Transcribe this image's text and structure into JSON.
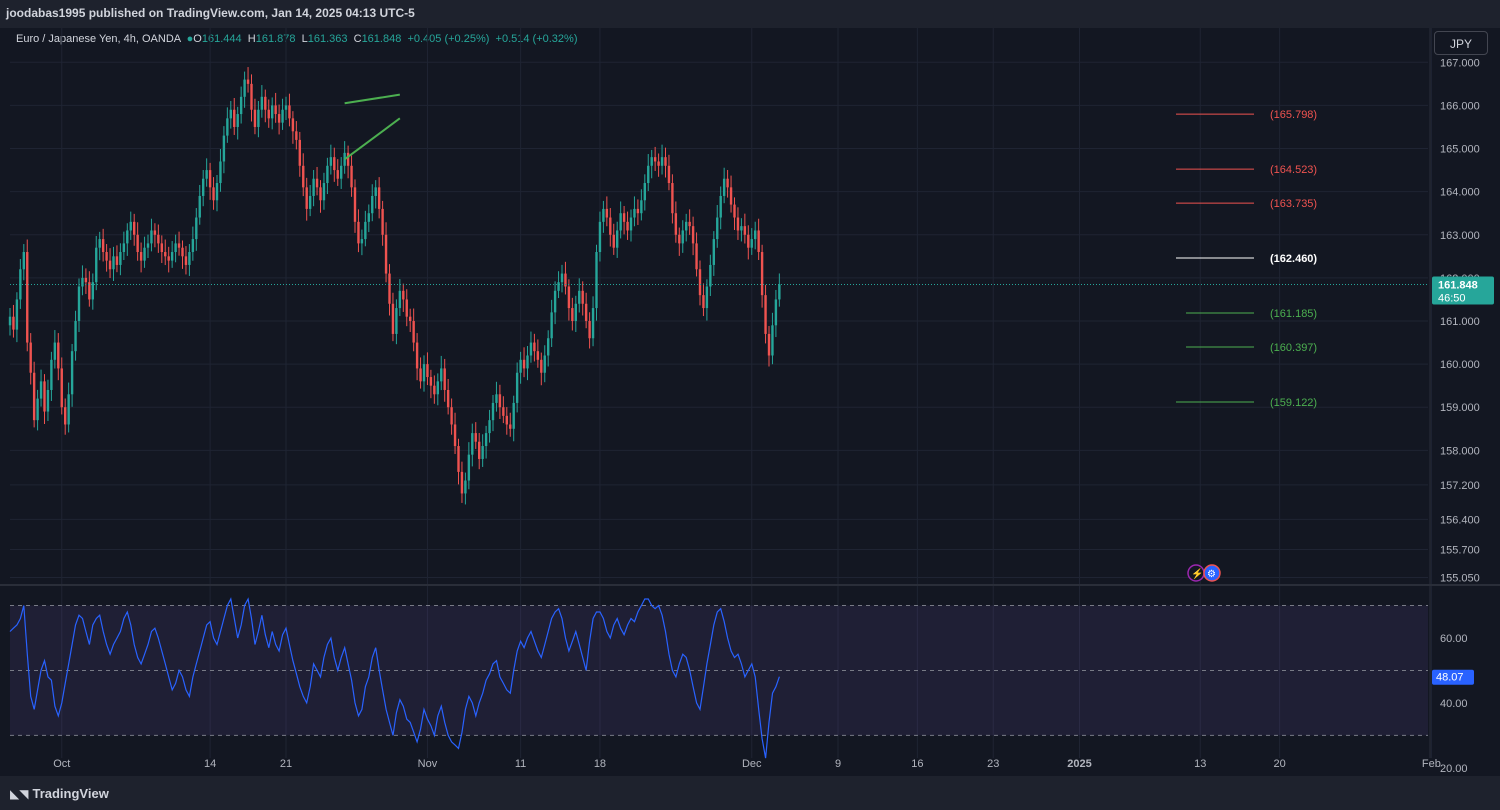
{
  "header": {
    "published": "joodabas1995 published on TradingView.com, Jan 14, 2025 04:13 UTC-5"
  },
  "legend": {
    "symbol": "Euro / Japanese Yen, 4h, OANDA",
    "o_label": "O",
    "o": "161.444",
    "h_label": "H",
    "h": "161.878",
    "l_label": "L",
    "l": "161.363",
    "c_label": "C",
    "c": "161.848",
    "change": "+0.405 (+0.25%)",
    "change2": "+0.514 (+0.32%)"
  },
  "currency_button": "JPY",
  "footer": {
    "brand": "TradingView",
    "logo_icon": "tradingview-logo-icon"
  },
  "colors": {
    "bg": "#131722",
    "up": "#26a69a",
    "down": "#ef5350",
    "rsi": "#2962ff",
    "red_level": "#ef5350",
    "green_level": "#4caf50",
    "white_level": "#ffffff"
  },
  "chart_data": [
    {
      "type": "candlestick",
      "title": "",
      "symbol": "EURJPY",
      "interval": "4h",
      "ylim": [
        154.9,
        167.1
      ],
      "y_ticks": [
        "167.000",
        "166.000",
        "165.000",
        "164.000",
        "163.000",
        "162.000",
        "161.000",
        "160.000",
        "159.000",
        "158.000",
        "157.200",
        "156.400",
        "155.700",
        "155.050"
      ],
      "x_ticks": [
        {
          "label": "Oct",
          "idx": 15
        },
        {
          "label": "14",
          "idx": 58
        },
        {
          "label": "21",
          "idx": 80
        },
        {
          "label": "Nov",
          "idx": 121
        },
        {
          "label": "11",
          "idx": 148
        },
        {
          "label": "18",
          "idx": 171
        },
        {
          "label": "Dec",
          "idx": 215
        },
        {
          "label": "9",
          "idx": 240
        },
        {
          "label": "16",
          "idx": 263
        },
        {
          "label": "23",
          "idx": 285
        },
        {
          "label": "2025",
          "idx": 310
        },
        {
          "label": "13",
          "idx": 345
        },
        {
          "label": "20",
          "idx": 368
        },
        {
          "label": "Feb",
          "idx": 412
        }
      ],
      "last_price": "161.848",
      "last_price_value": 161.848,
      "countdown": "46:50",
      "closes": [
        161.1,
        160.8,
        161.5,
        162.2,
        162.6,
        160.5,
        159.8,
        158.7,
        159.2,
        159.6,
        158.9,
        159.4,
        160.1,
        160.5,
        159.9,
        159.0,
        158.6,
        159.3,
        160.3,
        161.0,
        161.8,
        162.0,
        161.9,
        161.5,
        161.9,
        162.7,
        162.9,
        162.6,
        162.4,
        162.2,
        162.5,
        162.3,
        162.6,
        162.8,
        163.1,
        163.3,
        163.0,
        162.6,
        162.4,
        162.7,
        162.8,
        163.1,
        163.0,
        162.8,
        162.6,
        162.5,
        162.4,
        162.6,
        162.8,
        162.7,
        162.5,
        162.3,
        162.6,
        162.9,
        163.4,
        163.9,
        164.3,
        164.5,
        164.1,
        163.8,
        164.2,
        164.7,
        165.3,
        165.7,
        165.9,
        165.5,
        165.8,
        166.2,
        166.6,
        166.5,
        165.9,
        165.5,
        165.9,
        166.2,
        165.9,
        165.7,
        166.0,
        165.8,
        165.6,
        165.9,
        166.0,
        165.7,
        165.4,
        165.2,
        164.6,
        164.1,
        163.6,
        163.9,
        164.3,
        164.1,
        163.8,
        164.2,
        164.6,
        164.8,
        164.5,
        164.3,
        164.6,
        164.9,
        164.6,
        164.1,
        163.3,
        162.8,
        162.9,
        163.3,
        163.5,
        163.9,
        164.1,
        163.6,
        163.0,
        162.1,
        161.4,
        160.7,
        161.3,
        161.7,
        161.5,
        161.1,
        161.0,
        160.5,
        159.9,
        159.6,
        160.0,
        159.7,
        159.5,
        159.3,
        159.6,
        159.9,
        159.4,
        159.0,
        158.6,
        158.1,
        157.5,
        157.0,
        157.3,
        157.9,
        158.4,
        158.2,
        157.8,
        158.1,
        158.4,
        158.7,
        159.1,
        159.3,
        159.0,
        158.8,
        158.6,
        158.5,
        159.1,
        159.8,
        160.1,
        159.9,
        160.2,
        160.5,
        160.3,
        160.1,
        159.8,
        160.2,
        160.6,
        161.2,
        161.7,
        161.9,
        162.1,
        161.8,
        161.3,
        161.0,
        161.4,
        161.7,
        161.4,
        161.0,
        160.6,
        161.3,
        162.6,
        163.3,
        163.6,
        163.4,
        163.0,
        162.7,
        163.1,
        163.5,
        163.3,
        163.1,
        163.4,
        163.6,
        163.5,
        163.8,
        164.2,
        164.6,
        164.8,
        164.7,
        164.6,
        164.8,
        164.6,
        164.2,
        163.5,
        163.0,
        162.8,
        163.1,
        163.3,
        163.2,
        162.8,
        162.2,
        161.6,
        161.3,
        161.8,
        162.3,
        162.9,
        163.4,
        163.9,
        164.3,
        164.1,
        163.7,
        163.4,
        163.1,
        163.2,
        163.0,
        162.7,
        162.9,
        163.1,
        162.6,
        161.6,
        160.7,
        160.2,
        160.9,
        161.5,
        161.848
      ]
    },
    {
      "type": "line",
      "title": "",
      "ylim": [
        17.5,
        76
      ],
      "y_ticks": [
        "60.00",
        "40.00",
        "20.00"
      ],
      "band_upper": 70,
      "band_lower": 30,
      "midline": 50,
      "last_value": "48.07",
      "last_value_num": 48.07,
      "values": [
        62,
        63,
        64,
        66,
        70,
        55,
        42,
        38,
        44,
        50,
        53,
        48,
        47,
        39,
        36,
        40,
        46,
        52,
        58,
        64,
        67,
        66,
        62,
        58,
        64,
        66,
        67,
        62,
        58,
        55,
        58,
        60,
        62,
        66,
        68,
        64,
        58,
        54,
        52,
        55,
        58,
        62,
        63,
        60,
        56,
        52,
        48,
        44,
        46,
        50,
        48,
        44,
        42,
        48,
        52,
        56,
        60,
        64,
        65,
        60,
        58,
        62,
        66,
        70,
        72,
        66,
        60,
        64,
        70,
        72,
        66,
        58,
        62,
        67,
        61,
        57,
        62,
        58,
        56,
        61,
        63,
        58,
        53,
        49,
        45,
        42,
        40,
        45,
        52,
        50,
        48,
        54,
        58,
        60,
        54,
        50,
        54,
        57,
        52,
        47,
        40,
        36,
        38,
        45,
        48,
        54,
        57,
        50,
        44,
        38,
        34,
        30,
        37,
        41,
        39,
        35,
        34,
        31,
        28,
        32,
        38,
        35,
        33,
        30,
        36,
        39,
        34,
        30,
        28,
        27,
        26,
        31,
        38,
        42,
        40,
        36,
        40,
        43,
        47,
        49,
        52,
        53,
        48,
        46,
        44,
        43,
        50,
        56,
        59,
        57,
        60,
        62,
        59,
        56,
        54,
        58,
        62,
        66,
        68,
        69,
        66,
        60,
        56,
        59,
        62,
        58,
        54,
        50,
        59,
        66,
        68,
        68,
        66,
        62,
        60,
        64,
        66,
        63,
        61,
        64,
        66,
        65,
        68,
        70,
        72,
        72,
        70,
        69,
        70,
        67,
        62,
        55,
        50,
        48,
        52,
        55,
        54,
        50,
        45,
        40,
        38,
        45,
        52,
        58,
        64,
        68,
        69,
        65,
        60,
        56,
        54,
        55,
        52,
        48,
        50,
        52,
        48,
        38,
        29,
        23,
        34,
        43,
        45,
        48.07
      ]
    }
  ],
  "annotations": {
    "levels": [
      {
        "label": "(165.798)",
        "value": 165.798,
        "color": "red"
      },
      {
        "label": "(164.523)",
        "value": 164.523,
        "color": "red"
      },
      {
        "label": "(163.735)",
        "value": 163.735,
        "color": "red"
      },
      {
        "label": "(162.460)",
        "value": 162.46,
        "color": "white"
      },
      {
        "label": "(161.185)",
        "value": 161.185,
        "color": "green"
      },
      {
        "label": "(160.397)",
        "value": 160.397,
        "color": "green"
      },
      {
        "label": "(159.122)",
        "value": 159.122,
        "color": "green"
      }
    ],
    "triangle": [
      {
        "idx": 97,
        "value": 166.05
      },
      {
        "idx": 113,
        "value": 166.25
      },
      {
        "idx": 113,
        "value": 165.7
      },
      {
        "idx": 97,
        "value": 164.75
      }
    ],
    "event_icons": [
      "lightning-icon",
      "dividend-icon"
    ]
  }
}
